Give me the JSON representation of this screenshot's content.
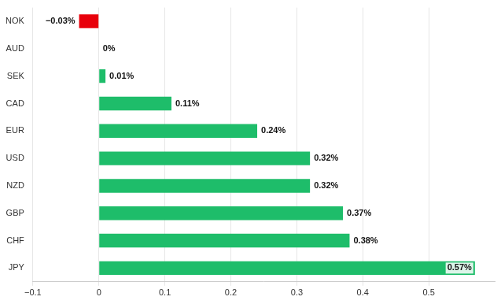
{
  "chart_data": {
    "type": "bar",
    "orientation": "horizontal",
    "categories": [
      "NOK",
      "AUD",
      "SEK",
      "CAD",
      "EUR",
      "USD",
      "NZD",
      "GBP",
      "CHF",
      "JPY"
    ],
    "values": [
      -0.03,
      0,
      0.01,
      0.11,
      0.24,
      0.32,
      0.32,
      0.37,
      0.38,
      0.57
    ],
    "value_labels": [
      "−0.03%",
      "0%",
      "0.01%",
      "0.11%",
      "0.24%",
      "0.32%",
      "0.32%",
      "0.37%",
      "0.38%",
      "0.57%"
    ],
    "colors": [
      "#e8000b",
      "#1ebd6a",
      "#1ebd6a",
      "#1ebd6a",
      "#1ebd6a",
      "#1ebd6a",
      "#1ebd6a",
      "#1ebd6a",
      "#1ebd6a",
      "#1ebd6a"
    ],
    "xlim": [
      -0.1,
      0.6
    ],
    "xticks": [
      {
        "value": -0.1,
        "label": "−0.1"
      },
      0,
      0.1,
      0.2,
      0.3,
      0.4,
      0.5
    ],
    "grid": true,
    "data_labels": true
  }
}
